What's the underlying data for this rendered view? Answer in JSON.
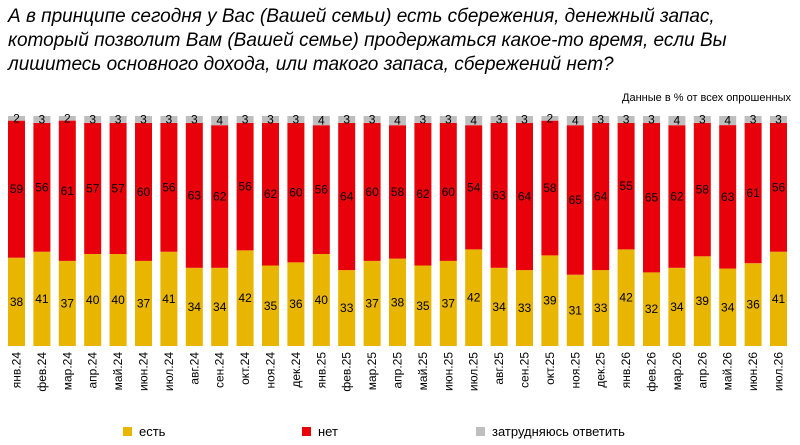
{
  "title_lines": [
    "А в принципе сегодня у Вас (Вашей семьи) есть сбережения, денежный запас,",
    "который позволит Вам (Вашей семье) продержаться какое-то время, если Вы",
    "лишитесь основного дохода, или такого запаса, сбережений нет?"
  ],
  "subtitle": "Данные в % от всех опрошенных",
  "colors": {
    "yes": "#E8B500",
    "no": "#E8000B",
    "hard": "#BEBEBE"
  },
  "chart_data": {
    "type": "bar",
    "stacked": true,
    "categories": [
      "янв.24",
      "фев.24",
      "мар.24",
      "апр.24",
      "май.24",
      "июн.24",
      "июл.24",
      "авг.24",
      "сен.24",
      "окт.24",
      "ноя.24",
      "дек.24",
      "янв.25",
      "фев.25",
      "мар.25",
      "апр.25",
      "май.25",
      "июн.25",
      "июл.25",
      "авг.25",
      "сен.25",
      "окт.25",
      "ноя.25",
      "дек.25",
      "янв.26",
      "фев.26",
      "мар.26",
      "апр.26",
      "май.26",
      "июн.26",
      "июл.26"
    ],
    "series": [
      {
        "name": "есть",
        "values": [
          38,
          41,
          37,
          40,
          40,
          37,
          41,
          34,
          34,
          42,
          35,
          36,
          40,
          33,
          37,
          38,
          35,
          37,
          42,
          34,
          33,
          39,
          31,
          33,
          42,
          32,
          34,
          39,
          34,
          36,
          41
        ]
      },
      {
        "name": "нет",
        "values": [
          59,
          56,
          61,
          57,
          57,
          60,
          56,
          63,
          62,
          56,
          62,
          60,
          56,
          64,
          60,
          58,
          62,
          60,
          54,
          63,
          64,
          58,
          65,
          64,
          55,
          65,
          62,
          58,
          63,
          61,
          56
        ]
      },
      {
        "name": "затрудняюсь ответить",
        "values": [
          2,
          3,
          2,
          3,
          3,
          3,
          3,
          3,
          4,
          3,
          3,
          3,
          4,
          3,
          3,
          4,
          3,
          3,
          4,
          3,
          3,
          2,
          4,
          3,
          3,
          3,
          4,
          3,
          4,
          3,
          3
        ]
      }
    ],
    "ylim": [
      0,
      100
    ],
    "legend_position": "bottom"
  }
}
